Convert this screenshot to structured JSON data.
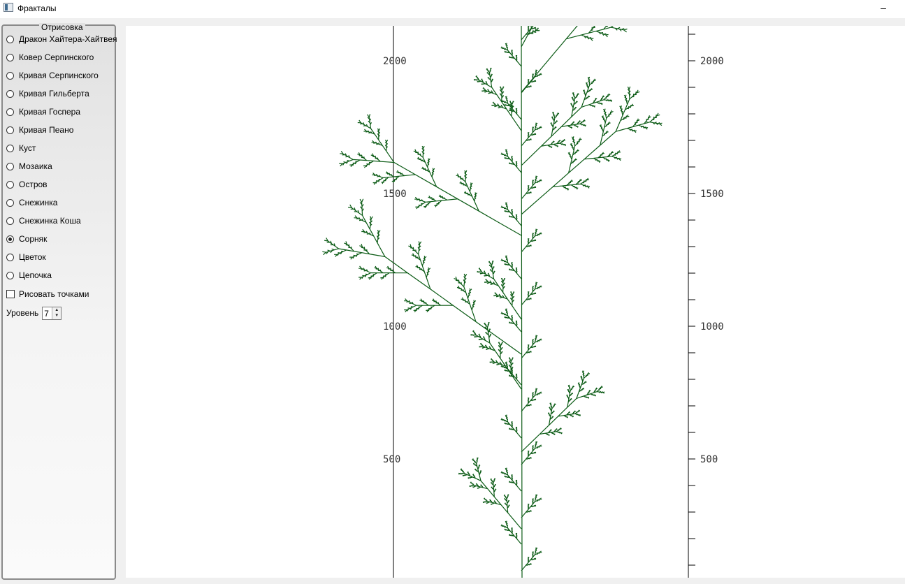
{
  "window": {
    "title": "Фракталы",
    "minimize_glyph": "–"
  },
  "panel": {
    "group_title": "Отрисовка",
    "options": [
      {
        "label": "Дракон Хайтера-Хайтвея",
        "checked": false
      },
      {
        "label": "Ковер Серпинского",
        "checked": false
      },
      {
        "label": "Кривая Серпинского",
        "checked": false
      },
      {
        "label": "Кривая Гильберта",
        "checked": false
      },
      {
        "label": "Кривая Госпера",
        "checked": false
      },
      {
        "label": "Кривая Пеано",
        "checked": false
      },
      {
        "label": "Куст",
        "checked": false
      },
      {
        "label": "Мозаика",
        "checked": false
      },
      {
        "label": "Остров",
        "checked": false
      },
      {
        "label": "Снежинка",
        "checked": false
      },
      {
        "label": "Снежинка Коша",
        "checked": false
      },
      {
        "label": "Сорняк",
        "checked": true
      },
      {
        "label": "Цветок",
        "checked": false
      },
      {
        "label": "Цепочка",
        "checked": false
      }
    ],
    "draw_points": {
      "label": "Рисовать точками",
      "checked": false
    },
    "level": {
      "label": "Уровень",
      "value": "7",
      "up_glyph": "▲",
      "down_glyph": "▼"
    }
  },
  "plot": {
    "axis_ticks": [
      "500",
      "1000",
      "1500",
      "2000"
    ],
    "fractal_color": "#0a5a14",
    "axis_color": "#000000"
  }
}
